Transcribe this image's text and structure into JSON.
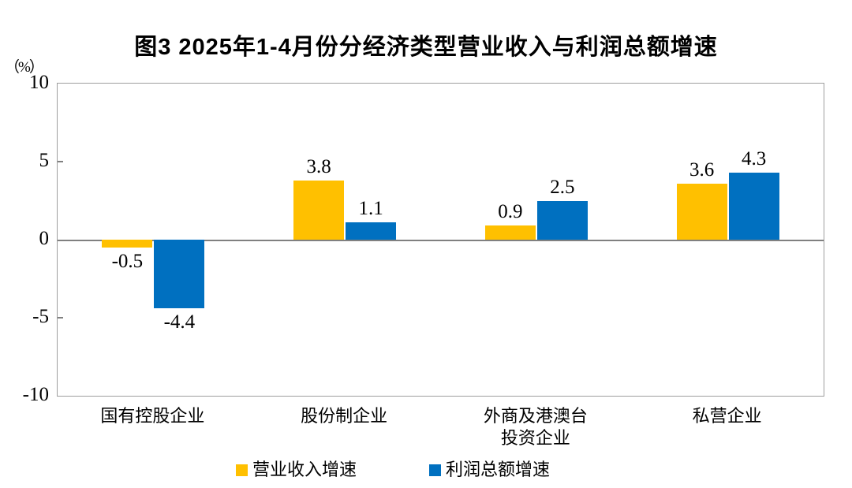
{
  "chart_data": {
    "type": "bar",
    "title": "图3 2025年1-4月份分经济类型营业收入与利润总额增速",
    "unit_label": "（%）",
    "categories": [
      "国有控股企业",
      "股份制企业",
      "外商及港澳台投资企业",
      "私营企业"
    ],
    "categories_lines": [
      [
        "国有控股企业"
      ],
      [
        "股份制企业"
      ],
      [
        "外商及港澳台",
        "投资企业"
      ],
      [
        "私营企业"
      ]
    ],
    "series": [
      {
        "name": "营业收入增速",
        "color": "#FFC000",
        "values": [
          -0.5,
          3.8,
          0.9,
          3.6
        ]
      },
      {
        "name": "利润总额增速",
        "color": "#0070C0",
        "values": [
          -4.4,
          1.1,
          2.5,
          4.3
        ]
      }
    ],
    "ylim": [
      -10,
      10
    ],
    "yticks": [
      10,
      5,
      0,
      -5,
      -10
    ],
    "minor_tick_values": [
      5,
      -5
    ],
    "grid": false,
    "legend_position": "bottom",
    "axis_color": "#9e9e9e",
    "zero_line_color": "#808080",
    "value_label_decimals": 1
  }
}
